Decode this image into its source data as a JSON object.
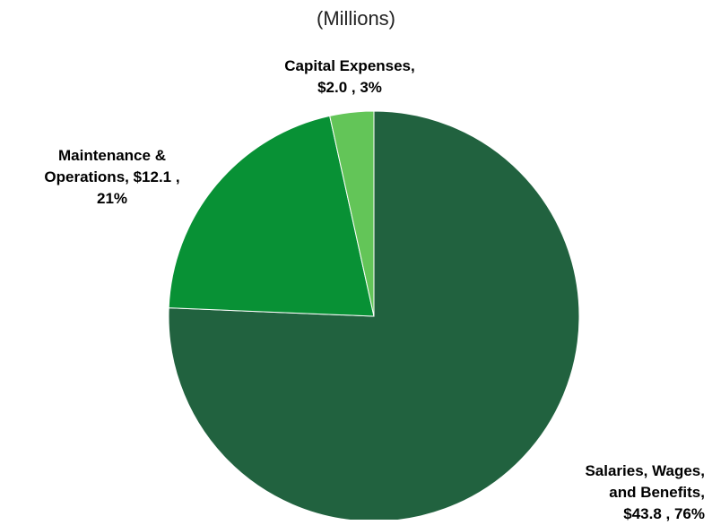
{
  "header": {
    "subtitle": "(Millions)"
  },
  "chart_data": {
    "type": "pie",
    "units": "$ Millions",
    "start_angle_deg": 0,
    "direction": "clockwise",
    "slices": [
      {
        "name": "Salaries, Wages, and Benefits",
        "value": 43.8,
        "percent": 76,
        "color": "#21623f",
        "label_lines": [
          "Salaries, Wages,",
          "and Benefits,",
          "$43.8 , 76%"
        ]
      },
      {
        "name": "Maintenance & Operations",
        "value": 12.1,
        "percent": 21,
        "color": "#089135",
        "label_lines": [
          "Maintenance &",
          "Operations, $12.1 ,",
          "21%"
        ]
      },
      {
        "name": "Capital Expenses",
        "value": 2.0,
        "percent": 3,
        "color": "#63c558",
        "label_lines": [
          "Capital Expenses,",
          "$2.0 , 3%"
        ]
      }
    ]
  }
}
